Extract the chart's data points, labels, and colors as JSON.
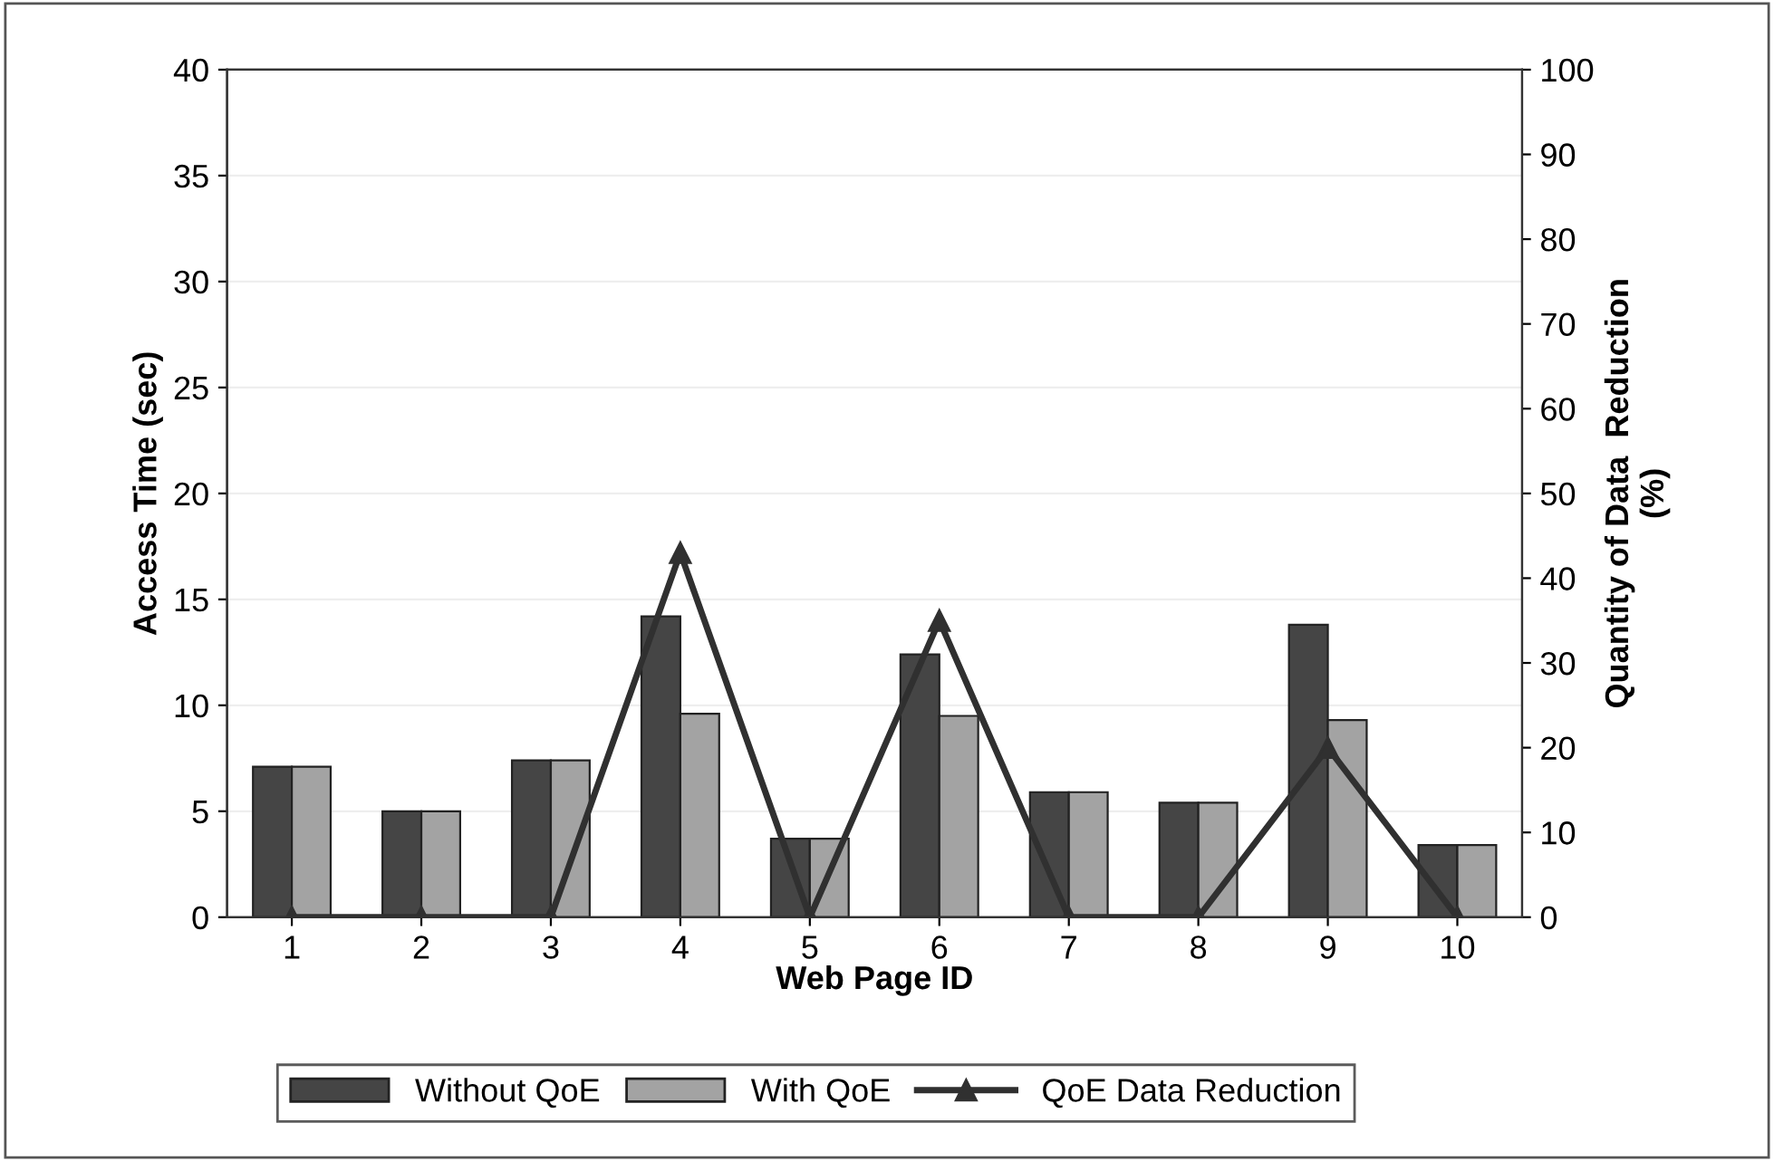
{
  "chart_data": {
    "type": "bar",
    "xlabel": "Web Page ID",
    "ylabel": "Access Time (sec)",
    "y2label": "Quantity of Data  Reduction\n(%)",
    "categories": [
      "1",
      "2",
      "3",
      "4",
      "5",
      "6",
      "7",
      "8",
      "9",
      "10"
    ],
    "series": [
      {
        "name": "Without QoE",
        "color": "#454545",
        "values": [
          7.1,
          5.0,
          7.4,
          14.2,
          3.7,
          12.4,
          5.9,
          5.4,
          13.8,
          3.4
        ]
      },
      {
        "name": "With QoE",
        "color": "#a3a3a3",
        "values": [
          7.1,
          5.0,
          7.4,
          9.6,
          3.7,
          9.5,
          5.9,
          5.4,
          9.3,
          3.4
        ]
      },
      {
        "name": "QoE Data Reduction",
        "type": "line",
        "axis": "y2",
        "color": "#303030",
        "marker": "triangle",
        "values": [
          0,
          0,
          0,
          43,
          0,
          35,
          0,
          0,
          20,
          0
        ]
      }
    ],
    "ylim": [
      0,
      40
    ],
    "yticks": [
      0,
      5,
      10,
      15,
      20,
      25,
      30,
      35,
      40
    ],
    "y2lim": [
      0,
      100
    ],
    "y2ticks": [
      0,
      10,
      20,
      30,
      40,
      50,
      60,
      70,
      80,
      90,
      100
    ],
    "grid": "y",
    "legend": "bottom"
  }
}
